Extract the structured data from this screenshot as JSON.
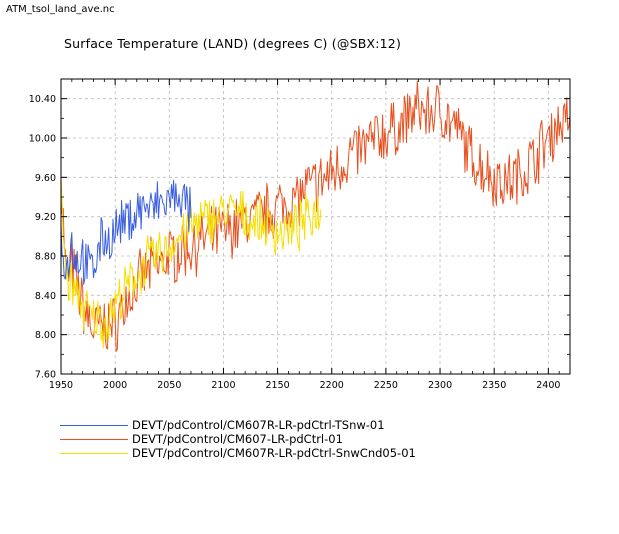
{
  "file_label": "ATM_tsol_land_ave.nc",
  "chart_data": {
    "type": "line",
    "title": "Surface Temperature (LAND) (degrees C) (@SBX:12)",
    "xlabel": "",
    "ylabel": "",
    "xlim": [
      1950,
      2420
    ],
    "ylim": [
      7.6,
      10.6
    ],
    "x_ticks": [
      "1950",
      "2000",
      "2050",
      "2100",
      "2150",
      "2200",
      "2250",
      "2300",
      "2350",
      "2400"
    ],
    "y_ticks": [
      "7.60",
      "8.00",
      "8.40",
      "8.80",
      "9.20",
      "9.60",
      "10.00",
      "10.40"
    ],
    "grid": true,
    "legend_position": "bottom-left",
    "series": [
      {
        "name": "DEVT/pdControl/CM607R-LR-pdCtrl-TSnw-01",
        "color": "#3a5fe0",
        "x": [
          1950,
          1955,
          1960,
          1965,
          1970,
          1975,
          1980,
          1985,
          1990,
          1995,
          2000,
          2005,
          2010,
          2015,
          2020,
          2025,
          2030,
          2035,
          2040,
          2045,
          2050,
          2055,
          2060,
          2065,
          2070
        ],
        "y": [
          9.0,
          8.7,
          8.9,
          8.75,
          8.8,
          8.65,
          8.7,
          8.9,
          9.0,
          8.95,
          9.05,
          9.1,
          9.15,
          9.2,
          9.25,
          9.3,
          9.3,
          9.25,
          9.35,
          9.3,
          9.4,
          9.35,
          9.45,
          9.3,
          9.25
        ]
      },
      {
        "name": "DEVT/pdControl/CM607-LR-pdCtrl-01",
        "color": "#e8501f",
        "x": [
          1950,
          1955,
          1960,
          1970,
          1980,
          1990,
          2000,
          2010,
          2020,
          2030,
          2040,
          2050,
          2060,
          2070,
          2080,
          2090,
          2100,
          2110,
          2120,
          2130,
          2140,
          2150,
          2160,
          2170,
          2180,
          2190,
          2200,
          2210,
          2220,
          2230,
          2240,
          2250,
          2260,
          2270,
          2280,
          2290,
          2300,
          2310,
          2320,
          2330,
          2340,
          2350,
          2360,
          2370,
          2380,
          2390,
          2400,
          2410,
          2420
        ],
        "y": [
          9.6,
          8.5,
          8.7,
          8.3,
          8.05,
          8.1,
          8.1,
          8.35,
          8.5,
          8.65,
          8.7,
          8.8,
          8.85,
          8.9,
          8.95,
          9.0,
          9.05,
          9.1,
          9.15,
          9.2,
          9.25,
          9.3,
          9.35,
          9.4,
          9.5,
          9.55,
          9.65,
          9.75,
          9.85,
          9.9,
          10.0,
          10.05,
          10.1,
          10.2,
          10.3,
          10.25,
          10.3,
          10.15,
          10.0,
          9.8,
          9.7,
          9.6,
          9.55,
          9.6,
          9.7,
          9.85,
          10.0,
          10.15,
          10.2
        ]
      },
      {
        "name": "DEVT/pdControl/CM607R-LR-pdCtrl-SnwCnd05-01",
        "color": "#f5e000",
        "x": [
          1950,
          1955,
          1960,
          1965,
          1970,
          1975,
          1980,
          1985,
          1990,
          1995,
          2000,
          2010,
          2020,
          2030,
          2040,
          2050,
          2060,
          2070,
          2080,
          2090,
          2100,
          2110,
          2120,
          2130,
          2140,
          2150,
          2160,
          2170,
          2180,
          2190
        ],
        "y": [
          9.4,
          8.6,
          8.5,
          8.4,
          8.3,
          8.2,
          8.15,
          8.15,
          8.1,
          8.2,
          8.3,
          8.45,
          8.6,
          8.75,
          8.8,
          8.9,
          9.0,
          9.1,
          9.15,
          9.2,
          9.25,
          9.25,
          9.2,
          9.15,
          9.1,
          9.05,
          9.05,
          9.1,
          9.2,
          9.3
        ]
      }
    ]
  }
}
